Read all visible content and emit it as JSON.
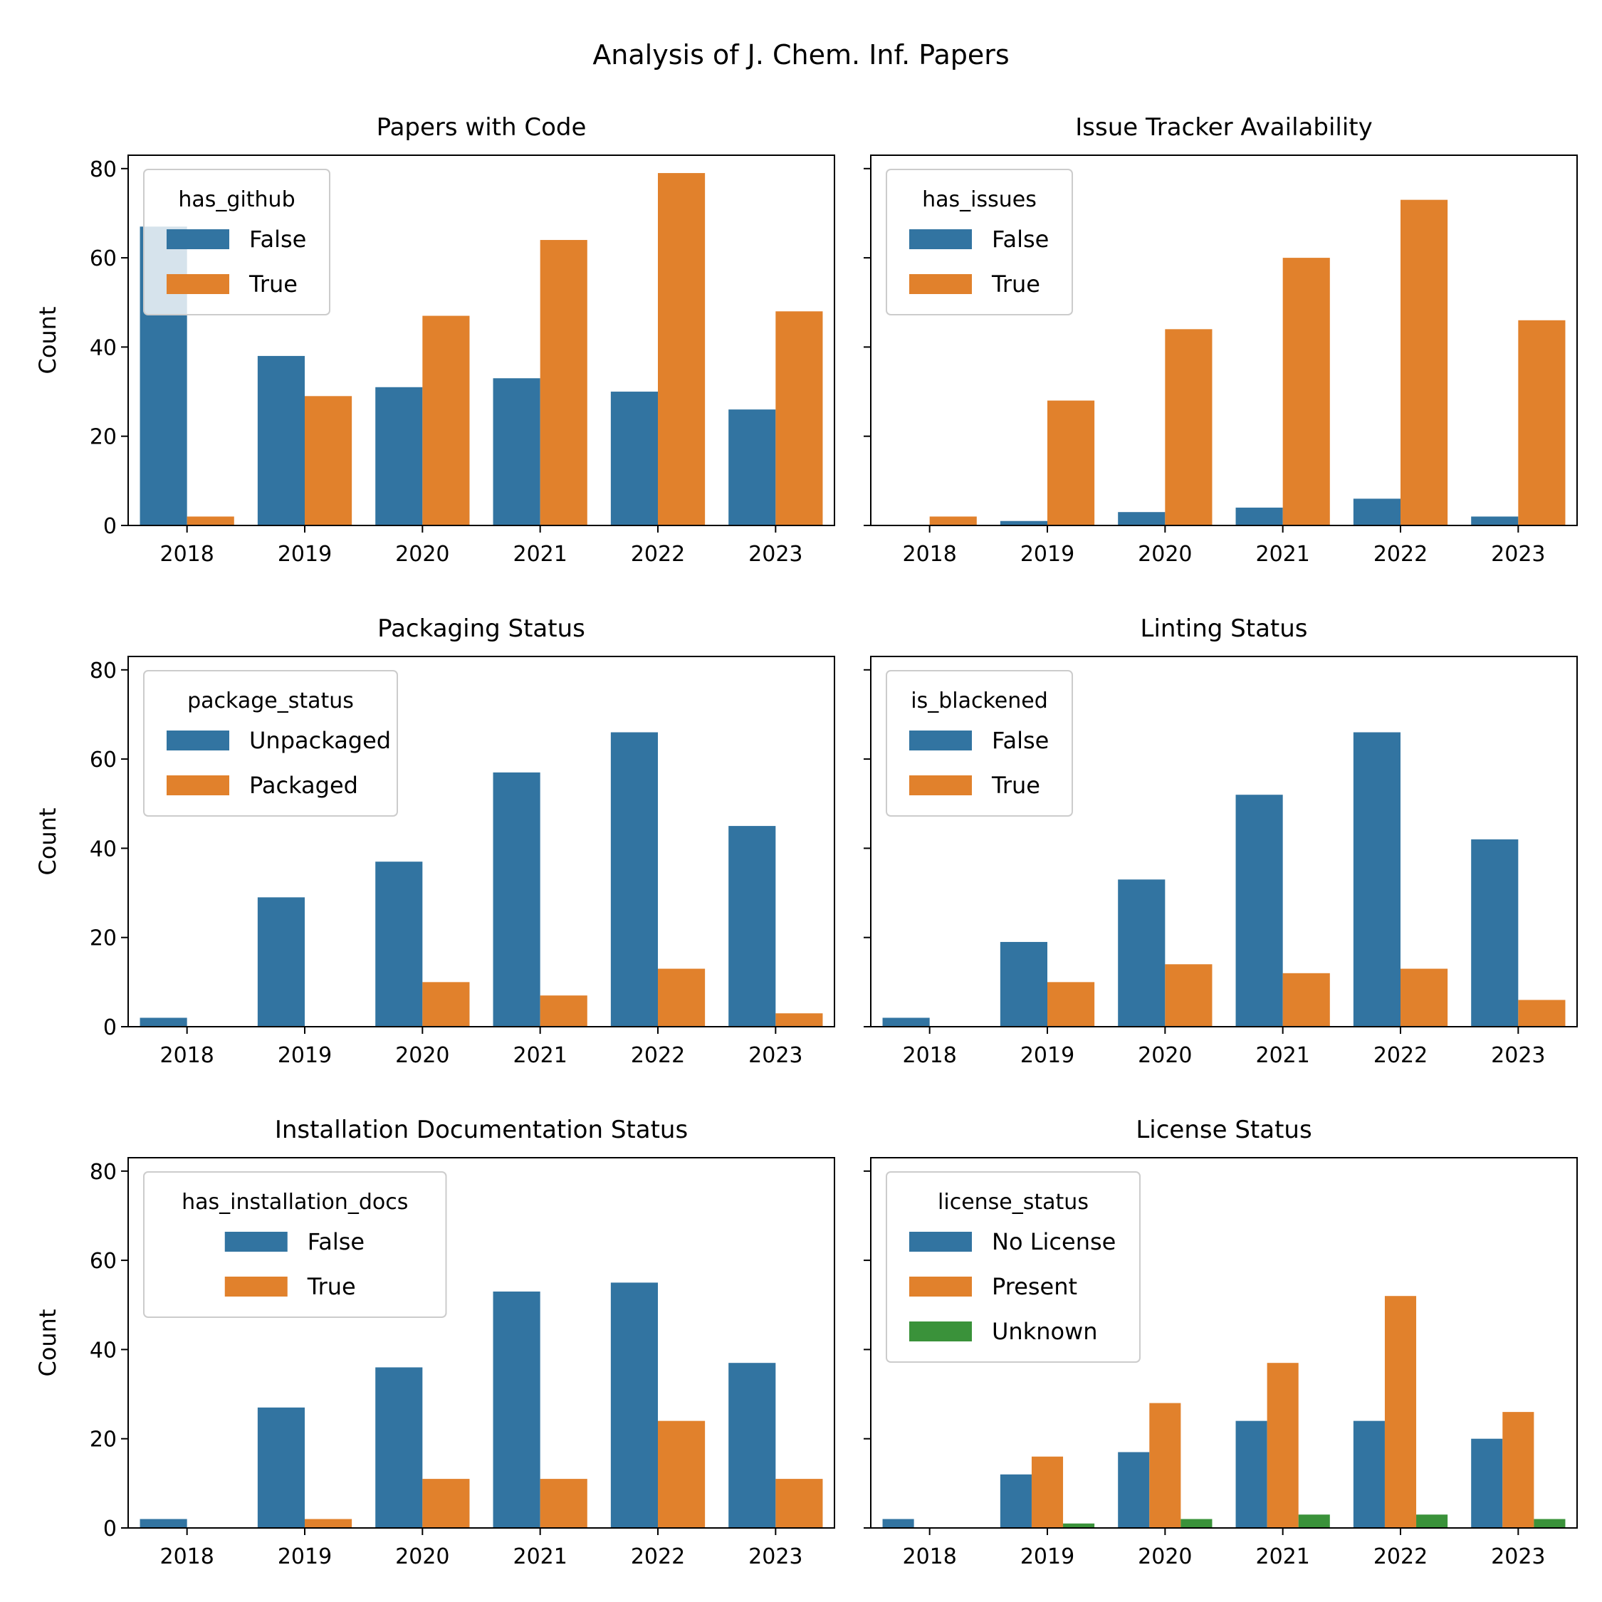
{
  "figure": {
    "title": "Analysis of J. Chem. Inf. Papers"
  },
  "colors": {
    "series1": "#3274a1",
    "series2": "#e1812c",
    "series3": "#3a923a",
    "axis": "#000000"
  },
  "chart_data": [
    {
      "type": "bar",
      "title": "Papers with Code",
      "xlabel": "",
      "ylabel": "Count",
      "ylim": [
        0,
        83
      ],
      "yticks": [
        0,
        20,
        40,
        60,
        80
      ],
      "categories": [
        "2018",
        "2019",
        "2020",
        "2021",
        "2022",
        "2023"
      ],
      "legend": {
        "title": "has_github",
        "placement": "upper left"
      },
      "series": [
        {
          "name": "False",
          "values": [
            67,
            38,
            31,
            33,
            30,
            26
          ]
        },
        {
          "name": "True",
          "values": [
            2,
            29,
            47,
            64,
            79,
            48
          ]
        }
      ]
    },
    {
      "type": "bar",
      "title": "Issue Tracker Availability",
      "xlabel": "",
      "ylabel": "",
      "ylim": [
        0,
        83
      ],
      "yticks": [
        0,
        20,
        40,
        60,
        80
      ],
      "categories": [
        "2018",
        "2019",
        "2020",
        "2021",
        "2022",
        "2023"
      ],
      "legend": {
        "title": "has_issues",
        "placement": "upper left"
      },
      "series": [
        {
          "name": "False",
          "values": [
            0,
            1,
            3,
            4,
            6,
            2
          ]
        },
        {
          "name": "True",
          "values": [
            2,
            28,
            44,
            60,
            73,
            46
          ]
        }
      ]
    },
    {
      "type": "bar",
      "title": "Packaging Status",
      "xlabel": "",
      "ylabel": "Count",
      "ylim": [
        0,
        83
      ],
      "yticks": [
        0,
        20,
        40,
        60,
        80
      ],
      "categories": [
        "2018",
        "2019",
        "2020",
        "2021",
        "2022",
        "2023"
      ],
      "legend": {
        "title": "package_status",
        "placement": "upper left"
      },
      "series": [
        {
          "name": "Unpackaged",
          "values": [
            2,
            29,
            37,
            57,
            66,
            45
          ]
        },
        {
          "name": "Packaged",
          "values": [
            0,
            0,
            10,
            7,
            13,
            3
          ]
        }
      ]
    },
    {
      "type": "bar",
      "title": "Linting Status",
      "xlabel": "",
      "ylabel": "",
      "ylim": [
        0,
        83
      ],
      "yticks": [
        0,
        20,
        40,
        60,
        80
      ],
      "categories": [
        "2018",
        "2019",
        "2020",
        "2021",
        "2022",
        "2023"
      ],
      "legend": {
        "title": "is_blackened",
        "placement": "upper left"
      },
      "series": [
        {
          "name": "False",
          "values": [
            2,
            19,
            33,
            52,
            66,
            42
          ]
        },
        {
          "name": "True",
          "values": [
            0,
            10,
            14,
            12,
            13,
            6
          ]
        }
      ]
    },
    {
      "type": "bar",
      "title": "Installation Documentation Status",
      "xlabel": "",
      "ylabel": "Count",
      "ylim": [
        0,
        83
      ],
      "yticks": [
        0,
        20,
        40,
        60,
        80
      ],
      "categories": [
        "2018",
        "2019",
        "2020",
        "2021",
        "2022",
        "2023"
      ],
      "legend": {
        "title": "has_installation_docs",
        "placement": "upper left"
      },
      "series": [
        {
          "name": "False",
          "values": [
            2,
            27,
            36,
            53,
            55,
            37
          ]
        },
        {
          "name": "True",
          "values": [
            0,
            2,
            11,
            11,
            24,
            11
          ]
        }
      ]
    },
    {
      "type": "bar",
      "title": "License Status",
      "xlabel": "",
      "ylabel": "",
      "ylim": [
        0,
        83
      ],
      "yticks": [
        0,
        20,
        40,
        60,
        80
      ],
      "categories": [
        "2018",
        "2019",
        "2020",
        "2021",
        "2022",
        "2023"
      ],
      "legend": {
        "title": "license_status",
        "placement": "upper left"
      },
      "series": [
        {
          "name": "No License",
          "values": [
            2,
            12,
            17,
            24,
            24,
            20
          ]
        },
        {
          "name": "Present",
          "values": [
            0,
            16,
            28,
            37,
            52,
            26
          ]
        },
        {
          "name": "Unknown",
          "values": [
            0,
            1,
            2,
            3,
            3,
            2
          ]
        }
      ]
    }
  ]
}
